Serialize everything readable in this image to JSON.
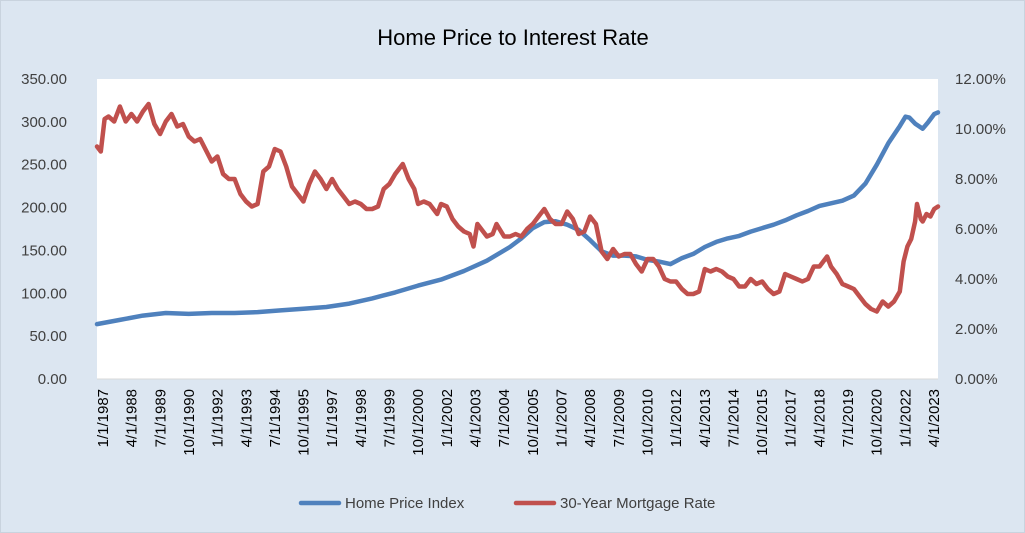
{
  "chart_data": {
    "type": "line",
    "title": "Home Price to Interest Rate",
    "xlabel": "",
    "ylabel": "",
    "x_tick_labels": [
      "1/1/1987",
      "4/1/1988",
      "7/1/1989",
      "10/1/1990",
      "1/1/1992",
      "4/1/1993",
      "7/1/1994",
      "10/1/1995",
      "1/1/1997",
      "4/1/1998",
      "7/1/1999",
      "10/1/2000",
      "1/1/2002",
      "4/1/2003",
      "7/1/2004",
      "10/1/2005",
      "1/1/2007",
      "4/1/2008",
      "7/1/2009",
      "10/1/2010",
      "1/1/2012",
      "4/1/2013",
      "7/1/2014",
      "10/1/2015",
      "1/1/2017",
      "4/1/2018",
      "7/1/2019",
      "10/1/2020",
      "1/1/2022",
      "4/1/2023"
    ],
    "x_range": [
      "1987-01",
      "2023-09"
    ],
    "y_left": {
      "range": [
        0,
        350
      ],
      "ticks": [
        "0.00",
        "50.00",
        "100.00",
        "150.00",
        "200.00",
        "250.00",
        "300.00",
        "350.00"
      ]
    },
    "y_right": {
      "range": [
        0,
        12
      ],
      "unit": "%",
      "ticks": [
        "0.00%",
        "2.00%",
        "4.00%",
        "6.00%",
        "8.00%",
        "10.00%",
        "12.00%"
      ]
    },
    "grid": false,
    "legend_position": "bottom",
    "series": [
      {
        "name": "Home Price Index",
        "axis": "left",
        "color": "#4f81bd",
        "points": [
          [
            "1987-01",
            64
          ],
          [
            "1988-01",
            69
          ],
          [
            "1989-01",
            74
          ],
          [
            "1990-01",
            77
          ],
          [
            "1991-01",
            76
          ],
          [
            "1992-01",
            77
          ],
          [
            "1993-01",
            77
          ],
          [
            "1994-01",
            78
          ],
          [
            "1995-01",
            80
          ],
          [
            "1996-01",
            82
          ],
          [
            "1997-01",
            84
          ],
          [
            "1998-01",
            88
          ],
          [
            "1999-01",
            94
          ],
          [
            "2000-01",
            101
          ],
          [
            "2001-01",
            109
          ],
          [
            "2002-01",
            116
          ],
          [
            "2003-01",
            126
          ],
          [
            "2004-01",
            138
          ],
          [
            "2005-01",
            154
          ],
          [
            "2005-07",
            164
          ],
          [
            "2006-01",
            176
          ],
          [
            "2006-07",
            183
          ],
          [
            "2007-01",
            184
          ],
          [
            "2007-07",
            180
          ],
          [
            "2008-01",
            174
          ],
          [
            "2008-07",
            162
          ],
          [
            "2009-01",
            149
          ],
          [
            "2009-07",
            144
          ],
          [
            "2010-01",
            144
          ],
          [
            "2010-07",
            143
          ],
          [
            "2011-01",
            139
          ],
          [
            "2011-07",
            137
          ],
          [
            "2012-01",
            134
          ],
          [
            "2012-07",
            141
          ],
          [
            "2013-01",
            146
          ],
          [
            "2013-07",
            154
          ],
          [
            "2014-01",
            160
          ],
          [
            "2014-07",
            164
          ],
          [
            "2015-01",
            167
          ],
          [
            "2015-07",
            172
          ],
          [
            "2016-01",
            176
          ],
          [
            "2016-07",
            180
          ],
          [
            "2017-01",
            185
          ],
          [
            "2017-07",
            191
          ],
          [
            "2018-01",
            196
          ],
          [
            "2018-07",
            202
          ],
          [
            "2019-01",
            205
          ],
          [
            "2019-07",
            208
          ],
          [
            "2020-01",
            214
          ],
          [
            "2020-07",
            228
          ],
          [
            "2021-01",
            250
          ],
          [
            "2021-07",
            275
          ],
          [
            "2021-10",
            285
          ],
          [
            "2022-01",
            295
          ],
          [
            "2022-04",
            306
          ],
          [
            "2022-06",
            305
          ],
          [
            "2022-09",
            298
          ],
          [
            "2023-01",
            292
          ],
          [
            "2023-04",
            300
          ],
          [
            "2023-07",
            309
          ],
          [
            "2023-09",
            311
          ]
        ]
      },
      {
        "name": "30-Year Mortgage Rate",
        "axis": "right",
        "color": "#c0504d",
        "points": [
          [
            "1987-01",
            9.3
          ],
          [
            "1987-03",
            9.1
          ],
          [
            "1987-05",
            10.4
          ],
          [
            "1987-07",
            10.5
          ],
          [
            "1987-10",
            10.3
          ],
          [
            "1988-01",
            10.9
          ],
          [
            "1988-04",
            10.3
          ],
          [
            "1988-07",
            10.6
          ],
          [
            "1988-10",
            10.3
          ],
          [
            "1989-01",
            10.7
          ],
          [
            "1989-04",
            11.0
          ],
          [
            "1989-07",
            10.2
          ],
          [
            "1989-10",
            9.8
          ],
          [
            "1990-01",
            10.3
          ],
          [
            "1990-04",
            10.6
          ],
          [
            "1990-07",
            10.1
          ],
          [
            "1990-10",
            10.2
          ],
          [
            "1991-01",
            9.7
          ],
          [
            "1991-04",
            9.5
          ],
          [
            "1991-07",
            9.6
          ],
          [
            "1992-01",
            8.7
          ],
          [
            "1992-04",
            8.9
          ],
          [
            "1992-07",
            8.2
          ],
          [
            "1992-10",
            8.0
          ],
          [
            "1993-01",
            8.0
          ],
          [
            "1993-04",
            7.4
          ],
          [
            "1993-07",
            7.1
          ],
          [
            "1993-10",
            6.9
          ],
          [
            "1994-01",
            7.0
          ],
          [
            "1994-04",
            8.3
          ],
          [
            "1994-07",
            8.5
          ],
          [
            "1994-10",
            9.2
          ],
          [
            "1995-01",
            9.1
          ],
          [
            "1995-04",
            8.5
          ],
          [
            "1995-07",
            7.7
          ],
          [
            "1995-10",
            7.4
          ],
          [
            "1996-01",
            7.1
          ],
          [
            "1996-04",
            7.8
          ],
          [
            "1996-07",
            8.3
          ],
          [
            "1996-10",
            8.0
          ],
          [
            "1997-01",
            7.6
          ],
          [
            "1997-04",
            8.0
          ],
          [
            "1997-07",
            7.6
          ],
          [
            "1997-10",
            7.3
          ],
          [
            "1998-01",
            7.0
          ],
          [
            "1998-04",
            7.1
          ],
          [
            "1998-07",
            7.0
          ],
          [
            "1998-10",
            6.8
          ],
          [
            "1999-01",
            6.8
          ],
          [
            "1999-04",
            6.9
          ],
          [
            "1999-07",
            7.6
          ],
          [
            "1999-10",
            7.8
          ],
          [
            "2000-01",
            8.2
          ],
          [
            "2000-05",
            8.6
          ],
          [
            "2000-08",
            8.0
          ],
          [
            "2000-11",
            7.6
          ],
          [
            "2001-01",
            7.0
          ],
          [
            "2001-04",
            7.1
          ],
          [
            "2001-07",
            7.0
          ],
          [
            "2001-11",
            6.6
          ],
          [
            "2002-01",
            7.0
          ],
          [
            "2002-04",
            6.9
          ],
          [
            "2002-07",
            6.4
          ],
          [
            "2002-10",
            6.1
          ],
          [
            "2003-01",
            5.9
          ],
          [
            "2003-04",
            5.8
          ],
          [
            "2003-06",
            5.3
          ],
          [
            "2003-08",
            6.2
          ],
          [
            "2004-01",
            5.7
          ],
          [
            "2004-04",
            5.8
          ],
          [
            "2004-06",
            6.2
          ],
          [
            "2004-10",
            5.7
          ],
          [
            "2005-01",
            5.7
          ],
          [
            "2005-04",
            5.8
          ],
          [
            "2005-07",
            5.7
          ],
          [
            "2005-10",
            6.0
          ],
          [
            "2006-01",
            6.2
          ],
          [
            "2006-04",
            6.5
          ],
          [
            "2006-07",
            6.8
          ],
          [
            "2006-10",
            6.4
          ],
          [
            "2007-01",
            6.2
          ],
          [
            "2007-04",
            6.2
          ],
          [
            "2007-07",
            6.7
          ],
          [
            "2007-10",
            6.4
          ],
          [
            "2008-01",
            5.8
          ],
          [
            "2008-04",
            5.9
          ],
          [
            "2008-07",
            6.5
          ],
          [
            "2008-10",
            6.2
          ],
          [
            "2009-01",
            5.1
          ],
          [
            "2009-04",
            4.8
          ],
          [
            "2009-07",
            5.2
          ],
          [
            "2009-10",
            4.9
          ],
          [
            "2010-01",
            5.0
          ],
          [
            "2010-04",
            5.0
          ],
          [
            "2010-07",
            4.6
          ],
          [
            "2010-10",
            4.3
          ],
          [
            "2011-01",
            4.8
          ],
          [
            "2011-04",
            4.8
          ],
          [
            "2011-07",
            4.5
          ],
          [
            "2011-10",
            4.0
          ],
          [
            "2012-01",
            3.9
          ],
          [
            "2012-04",
            3.9
          ],
          [
            "2012-07",
            3.6
          ],
          [
            "2012-10",
            3.4
          ],
          [
            "2013-01",
            3.4
          ],
          [
            "2013-04",
            3.5
          ],
          [
            "2013-07",
            4.4
          ],
          [
            "2013-10",
            4.3
          ],
          [
            "2014-01",
            4.4
          ],
          [
            "2014-04",
            4.3
          ],
          [
            "2014-07",
            4.1
          ],
          [
            "2014-10",
            4.0
          ],
          [
            "2015-01",
            3.7
          ],
          [
            "2015-04",
            3.7
          ],
          [
            "2015-07",
            4.0
          ],
          [
            "2015-10",
            3.8
          ],
          [
            "2016-01",
            3.9
          ],
          [
            "2016-04",
            3.6
          ],
          [
            "2016-07",
            3.4
          ],
          [
            "2016-10",
            3.5
          ],
          [
            "2017-01",
            4.2
          ],
          [
            "2017-04",
            4.1
          ],
          [
            "2017-07",
            4.0
          ],
          [
            "2017-10",
            3.9
          ],
          [
            "2018-01",
            4.0
          ],
          [
            "2018-04",
            4.5
          ],
          [
            "2018-07",
            4.5
          ],
          [
            "2018-11",
            4.9
          ],
          [
            "2019-01",
            4.5
          ],
          [
            "2019-04",
            4.2
          ],
          [
            "2019-07",
            3.8
          ],
          [
            "2019-10",
            3.7
          ],
          [
            "2020-01",
            3.6
          ],
          [
            "2020-04",
            3.3
          ],
          [
            "2020-07",
            3.0
          ],
          [
            "2020-10",
            2.8
          ],
          [
            "2021-01",
            2.7
          ],
          [
            "2021-04",
            3.1
          ],
          [
            "2021-07",
            2.9
          ],
          [
            "2021-10",
            3.1
          ],
          [
            "2022-01",
            3.5
          ],
          [
            "2022-03",
            4.7
          ],
          [
            "2022-05",
            5.3
          ],
          [
            "2022-07",
            5.6
          ],
          [
            "2022-09",
            6.3
          ],
          [
            "2022-10",
            7.0
          ],
          [
            "2022-12",
            6.4
          ],
          [
            "2023-01",
            6.3
          ],
          [
            "2023-03",
            6.6
          ],
          [
            "2023-05",
            6.5
          ],
          [
            "2023-07",
            6.8
          ],
          [
            "2023-09",
            6.9
          ]
        ]
      }
    ]
  }
}
